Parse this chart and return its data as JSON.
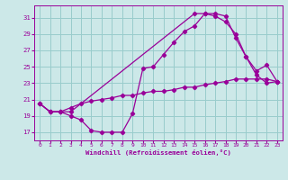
{
  "xlabel": "Windchill (Refroidissement éolien,°C)",
  "bg_color": "#cce8e8",
  "grid_color": "#99cccc",
  "line_color": "#990099",
  "xlim": [
    -0.5,
    23.5
  ],
  "ylim": [
    16.0,
    32.5
  ],
  "yticks": [
    17,
    19,
    21,
    23,
    25,
    27,
    29,
    31
  ],
  "xticks": [
    0,
    1,
    2,
    3,
    4,
    5,
    6,
    7,
    8,
    9,
    10,
    11,
    12,
    13,
    14,
    15,
    16,
    17,
    18,
    19,
    20,
    21,
    22,
    23
  ],
  "line1_x": [
    0,
    1,
    2,
    3,
    4,
    5,
    6,
    7,
    8,
    9,
    10,
    11,
    12,
    13,
    14,
    15,
    16,
    17,
    18,
    19,
    20,
    21,
    22,
    23
  ],
  "line1_y": [
    20.5,
    19.5,
    19.5,
    19.0,
    18.5,
    17.2,
    17.0,
    17.0,
    17.0,
    19.3,
    24.8,
    25.0,
    26.5,
    28.0,
    29.3,
    30.0,
    31.5,
    31.5,
    31.2,
    28.5,
    26.2,
    24.0,
    23.0,
    23.2
  ],
  "line2_x": [
    0,
    1,
    2,
    3,
    4,
    5,
    6,
    7,
    8,
    9,
    10,
    11,
    12,
    13,
    14,
    15,
    16,
    17,
    18,
    19,
    20,
    21,
    22,
    23
  ],
  "line2_y": [
    20.5,
    19.5,
    19.5,
    20.0,
    20.5,
    20.8,
    21.0,
    21.2,
    21.5,
    21.5,
    21.8,
    22.0,
    22.0,
    22.2,
    22.5,
    22.5,
    22.8,
    23.0,
    23.2,
    23.5,
    23.5,
    23.5,
    23.5,
    23.2
  ],
  "line3_x": [
    0,
    1,
    2,
    3,
    15,
    16,
    17,
    18,
    19,
    20,
    21,
    22,
    23
  ],
  "line3_y": [
    20.5,
    19.5,
    19.5,
    19.5,
    31.5,
    31.5,
    31.2,
    30.5,
    29.0,
    26.2,
    24.5,
    25.2,
    23.2
  ]
}
